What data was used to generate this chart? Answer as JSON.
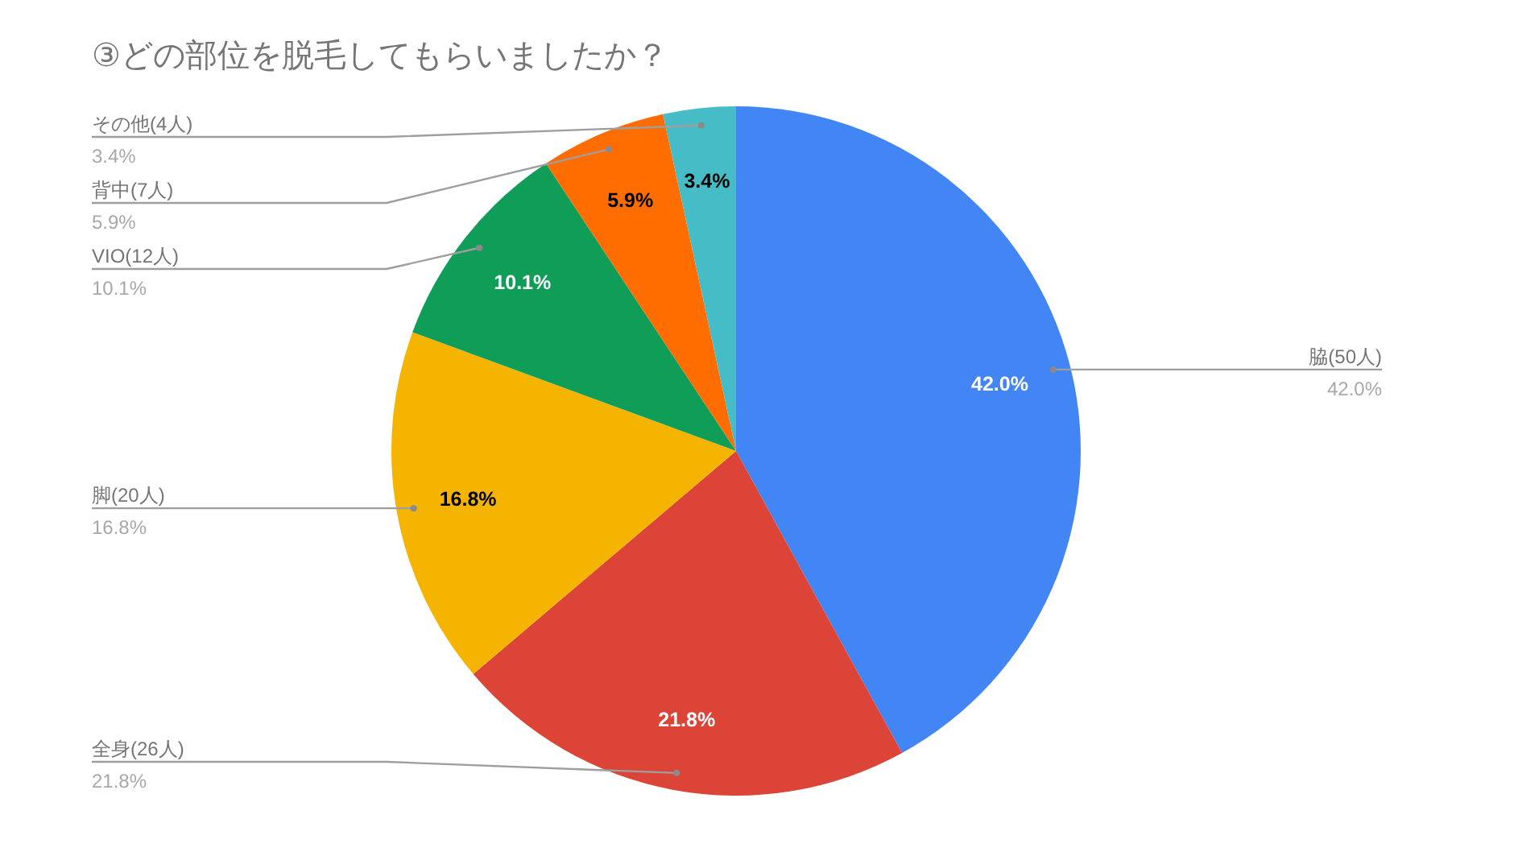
{
  "chart_data": {
    "type": "pie",
    "title": "③どの部位を脱毛してもらいましたか？",
    "categories": [
      "脇(50人)",
      "全身(26人)",
      "脚(20人)",
      "VIO(12人)",
      "背中(7人)",
      "その他(4人)"
    ],
    "values": [
      42.0,
      21.8,
      16.8,
      10.1,
      5.9,
      3.4
    ],
    "colors": [
      "#4285f4",
      "#db4437",
      "#f4b400",
      "#0f9d58",
      "#ff6d01",
      "#46bdc6"
    ],
    "value_labels": [
      "42.0%",
      "21.8%",
      "16.8%",
      "10.1%",
      "5.9%",
      "3.4%"
    ]
  }
}
